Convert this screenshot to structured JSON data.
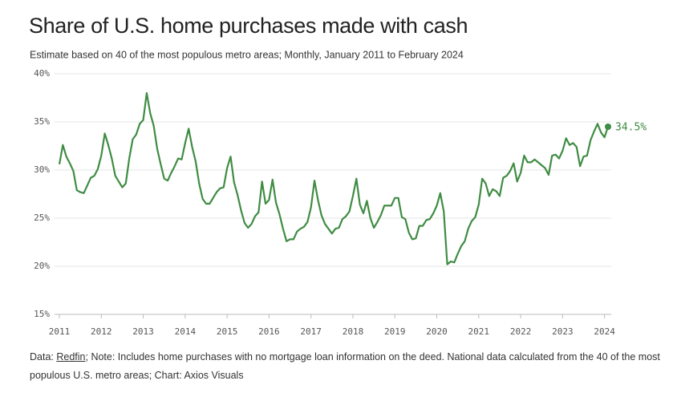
{
  "chart_data": {
    "type": "line",
    "title": "Share of U.S. home purchases made with cash",
    "subtitle": "Estimate based on 40 of the most populous metro areas; Monthly, January 2011 to February 2024",
    "source_prefix": "Data: ",
    "source_link": "Redfin",
    "source_text": "; Note: Includes home purchases with no mortgage loan information on the deed. National data calculated from the 40 of the most populous U.S. metro areas; Chart: Axios Visuals",
    "color": "#3f8c43",
    "grid": true,
    "x": [
      "2011-01",
      "2011-02",
      "2011-03",
      "2011-04",
      "2011-05",
      "2011-06",
      "2011-07",
      "2011-08",
      "2011-09",
      "2011-10",
      "2011-11",
      "2011-12",
      "2012-01",
      "2012-02",
      "2012-03",
      "2012-04",
      "2012-05",
      "2012-06",
      "2012-07",
      "2012-08",
      "2012-09",
      "2012-10",
      "2012-11",
      "2012-12",
      "2013-01",
      "2013-02",
      "2013-03",
      "2013-04",
      "2013-05",
      "2013-06",
      "2013-07",
      "2013-08",
      "2013-09",
      "2013-10",
      "2013-11",
      "2013-12",
      "2014-01",
      "2014-02",
      "2014-03",
      "2014-04",
      "2014-05",
      "2014-06",
      "2014-07",
      "2014-08",
      "2014-09",
      "2014-10",
      "2014-11",
      "2014-12",
      "2015-01",
      "2015-02",
      "2015-03",
      "2015-04",
      "2015-05",
      "2015-06",
      "2015-07",
      "2015-08",
      "2015-09",
      "2015-10",
      "2015-11",
      "2015-12",
      "2016-01",
      "2016-02",
      "2016-03",
      "2016-04",
      "2016-05",
      "2016-06",
      "2016-07",
      "2016-08",
      "2016-09",
      "2016-10",
      "2016-11",
      "2016-12",
      "2017-01",
      "2017-02",
      "2017-03",
      "2017-04",
      "2017-05",
      "2017-06",
      "2017-07",
      "2017-08",
      "2017-09",
      "2017-10",
      "2017-11",
      "2017-12",
      "2018-01",
      "2018-02",
      "2018-03",
      "2018-04",
      "2018-05",
      "2018-06",
      "2018-07",
      "2018-08",
      "2018-09",
      "2018-10",
      "2018-11",
      "2018-12",
      "2019-01",
      "2019-02",
      "2019-03",
      "2019-04",
      "2019-05",
      "2019-06",
      "2019-07",
      "2019-08",
      "2019-09",
      "2019-10",
      "2019-11",
      "2019-12",
      "2020-01",
      "2020-02",
      "2020-03",
      "2020-04",
      "2020-05",
      "2020-06",
      "2020-07",
      "2020-08",
      "2020-09",
      "2020-10",
      "2020-11",
      "2020-12",
      "2021-01",
      "2021-02",
      "2021-03",
      "2021-04",
      "2021-05",
      "2021-06",
      "2021-07",
      "2021-08",
      "2021-09",
      "2021-10",
      "2021-11",
      "2021-12",
      "2022-01",
      "2022-02",
      "2022-03",
      "2022-04",
      "2022-05",
      "2022-06",
      "2022-07",
      "2022-08",
      "2022-09",
      "2022-10",
      "2022-11",
      "2022-12",
      "2023-01",
      "2023-02",
      "2023-03",
      "2023-04",
      "2023-05",
      "2023-06",
      "2023-07",
      "2023-08",
      "2023-09",
      "2023-10",
      "2023-11",
      "2023-12",
      "2024-01",
      "2024-02"
    ],
    "values": [
      30.6,
      32.6,
      31.4,
      30.7,
      29.9,
      27.9,
      27.7,
      27.6,
      28.4,
      29.2,
      29.4,
      30.1,
      31.5,
      33.8,
      32.6,
      31.2,
      29.4,
      28.8,
      28.2,
      28.6,
      31.2,
      33.2,
      33.7,
      34.8,
      35.2,
      38.0,
      35.9,
      34.6,
      32.2,
      30.6,
      29.1,
      28.9,
      29.7,
      30.4,
      31.2,
      31.1,
      32.8,
      34.3,
      32.4,
      30.9,
      28.6,
      27.0,
      26.5,
      26.5,
      27.1,
      27.7,
      28.1,
      28.2,
      30.2,
      31.4,
      28.7,
      27.4,
      25.8,
      24.5,
      24.0,
      24.4,
      25.2,
      25.6,
      28.8,
      26.5,
      26.9,
      29.0,
      26.6,
      25.4,
      23.9,
      22.6,
      22.8,
      22.8,
      23.6,
      23.9,
      24.1,
      24.6,
      26.1,
      28.9,
      26.9,
      25.3,
      24.4,
      23.9,
      23.4,
      23.9,
      24.0,
      24.9,
      25.2,
      25.7,
      27.3,
      29.1,
      26.4,
      25.5,
      26.8,
      25.0,
      24.0,
      24.6,
      25.3,
      26.3,
      26.3,
      26.3,
      27.1,
      27.1,
      25.1,
      24.9,
      23.5,
      22.8,
      22.9,
      24.2,
      24.2,
      24.8,
      24.9,
      25.5,
      26.3,
      27.6,
      25.7,
      20.2,
      20.5,
      20.4,
      21.3,
      22.1,
      22.6,
      23.9,
      24.7,
      25.1,
      26.4,
      29.1,
      28.6,
      27.3,
      28.0,
      27.8,
      27.3,
      29.2,
      29.4,
      29.9,
      30.7,
      28.8,
      29.7,
      31.5,
      30.8,
      30.8,
      31.1,
      30.8,
      30.5,
      30.2,
      29.5,
      31.5,
      31.6,
      31.2,
      32.0,
      33.3,
      32.6,
      32.8,
      32.4,
      30.4,
      31.4,
      31.5,
      33.1,
      34.0,
      34.8,
      33.9,
      33.4,
      34.5
    ],
    "value_labels": [
      null,
      null,
      null,
      null,
      null,
      null,
      null,
      null,
      null,
      null,
      null,
      null,
      null,
      null,
      null,
      null,
      null,
      null,
      null,
      null,
      null,
      null,
      null,
      null,
      null,
      null,
      null,
      null,
      null,
      null,
      null,
      null,
      null,
      null,
      null,
      null,
      null,
      null,
      null,
      null,
      null,
      null,
      null,
      null,
      null,
      null,
      null,
      null,
      null,
      null,
      null,
      null,
      null,
      null,
      null,
      null,
      null,
      null,
      null,
      null,
      null,
      null,
      null,
      null,
      null,
      null,
      null,
      null,
      null,
      null,
      null,
      null,
      null,
      null,
      null,
      null,
      null,
      null,
      null,
      null,
      null,
      null,
      null,
      null,
      null,
      null,
      null,
      null,
      null,
      null,
      null,
      null,
      null,
      null,
      null,
      null,
      null,
      null,
      null,
      null,
      null,
      null,
      null,
      null,
      null,
      null,
      null,
      null,
      null,
      null,
      null,
      null,
      null,
      null,
      null,
      null,
      null,
      null,
      null,
      null,
      null,
      null,
      null,
      null,
      null,
      null,
      null,
      null,
      null,
      null,
      null,
      null,
      null,
      null,
      null,
      null,
      null,
      null,
      null,
      null,
      null,
      null,
      null,
      null,
      null,
      null,
      null,
      null,
      null,
      null,
      null,
      null,
      null,
      null,
      null,
      null,
      null,
      "34.5%"
    ],
    "xlim": [
      "2011-01",
      "2024-02"
    ],
    "xticks": [
      2011,
      2012,
      2013,
      2014,
      2015,
      2016,
      2017,
      2018,
      2019,
      2020,
      2021,
      2022,
      2023,
      2024
    ],
    "ylim": [
      15,
      40
    ],
    "yticks": [
      {
        "value": 15,
        "label": "15%"
      },
      {
        "value": 20,
        "label": "20%"
      },
      {
        "value": 25,
        "label": "25%"
      },
      {
        "value": 30,
        "label": "30%"
      },
      {
        "value": 35,
        "label": "35%"
      },
      {
        "value": 40,
        "label": "40%"
      }
    ]
  }
}
